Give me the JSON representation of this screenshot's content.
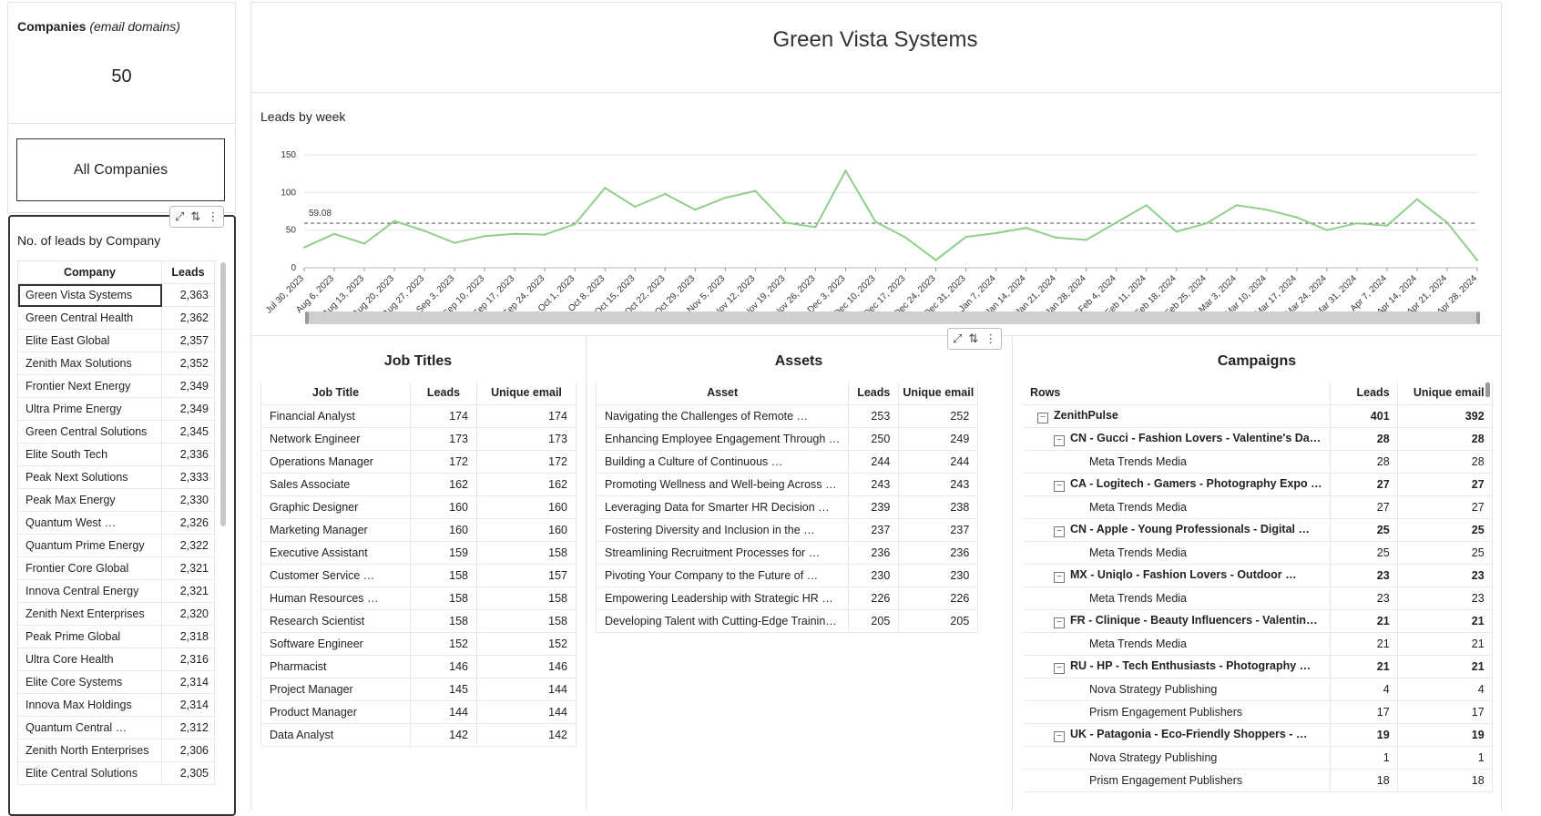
{
  "kpi": {
    "title_bold": "Companies",
    "title_italic": "(email domains)",
    "value": "50"
  },
  "filter_button": {
    "label": "All Companies"
  },
  "leads_by_company": {
    "title": "No. of leads by Company",
    "columns": [
      "Company",
      "Leads"
    ],
    "rows": [
      [
        "Green Vista Systems",
        "2,363"
      ],
      [
        "Green Central Health",
        "2,362"
      ],
      [
        "Elite East Global",
        "2,357"
      ],
      [
        "Zenith Max Solutions",
        "2,352"
      ],
      [
        "Frontier Next Energy",
        "2,349"
      ],
      [
        "Ultra Prime Energy",
        "2,349"
      ],
      [
        "Green Central Solutions",
        "2,345"
      ],
      [
        "Elite South Tech",
        "2,336"
      ],
      [
        "Peak Next Solutions",
        "2,333"
      ],
      [
        "Peak Max Energy",
        "2,330"
      ],
      [
        "Quantum West …",
        "2,326"
      ],
      [
        "Quantum Prime Energy",
        "2,322"
      ],
      [
        "Frontier Core Global",
        "2,321"
      ],
      [
        "Innova Central Energy",
        "2,321"
      ],
      [
        "Zenith Next Enterprises",
        "2,320"
      ],
      [
        "Peak Prime Global",
        "2,318"
      ],
      [
        "Ultra Core Health",
        "2,316"
      ],
      [
        "Elite Core Systems",
        "2,314"
      ],
      [
        "Innova Max Holdings",
        "2,314"
      ],
      [
        "Quantum Central …",
        "2,312"
      ],
      [
        "Zenith North Enterprises",
        "2,306"
      ],
      [
        "Elite Central Solutions",
        "2,305"
      ]
    ]
  },
  "page_title": "Green Vista Systems",
  "chart_data": {
    "type": "line",
    "title": "Leads by week",
    "xlabel": "",
    "ylabel": "",
    "ylim": [
      0,
      150
    ],
    "yticks": [
      "150",
      "100",
      "50",
      "0"
    ],
    "reference_line": {
      "value": 59.08,
      "label": "59.08"
    },
    "grid": true,
    "color": "#8fcf8a",
    "x": [
      "Jul 30, 2023",
      "Aug 6, 2023",
      "Aug 13, 2023",
      "Aug 20, 2023",
      "Aug 27, 2023",
      "Sep 3, 2023",
      "Sep 10, 2023",
      "Sep 17, 2023",
      "Sep 24, 2023",
      "Oct 1, 2023",
      "Oct 8, 2023",
      "Oct 15, 2023",
      "Oct 22, 2023",
      "Oct 29, 2023",
      "Nov 5, 2023",
      "Nov 12, 2023",
      "Nov 19, 2023",
      "Nov 26, 2023",
      "Dec 3, 2023",
      "Dec 10, 2023",
      "Dec 17, 2023",
      "Dec 24, 2023",
      "Dec 31, 2023",
      "Jan 7, 2024",
      "Jan 14, 2024",
      "Jan 21, 2024",
      "Jan 28, 2024",
      "Feb 4, 2024",
      "Feb 11, 2024",
      "Feb 18, 2024",
      "Feb 25, 2024",
      "Mar 3, 2024",
      "Mar 10, 2024",
      "Mar 17, 2024",
      "Mar 24, 2024",
      "Mar 31, 2024",
      "Apr 7, 2024",
      "Apr 14, 2024",
      "Apr 21, 2024",
      "Apr 28, 2024"
    ],
    "values": [
      27,
      45,
      32,
      62,
      49,
      33,
      42,
      45,
      44,
      58,
      106,
      81,
      98,
      77,
      93,
      102,
      60,
      54,
      129,
      61,
      40,
      10,
      41,
      46,
      53,
      40,
      37,
      60,
      83,
      48,
      59,
      83,
      77,
      67,
      50,
      59,
      56,
      91,
      60,
      10
    ]
  },
  "job_titles": {
    "title": "Job Titles",
    "columns": [
      "Job Title",
      "Leads",
      "Unique email"
    ],
    "rows": [
      [
        "Financial Analyst",
        "174",
        "174"
      ],
      [
        "Network Engineer",
        "173",
        "173"
      ],
      [
        "Operations Manager",
        "172",
        "172"
      ],
      [
        "Sales Associate",
        "162",
        "162"
      ],
      [
        "Graphic Designer",
        "160",
        "160"
      ],
      [
        "Marketing Manager",
        "160",
        "160"
      ],
      [
        "Executive Assistant",
        "159",
        "158"
      ],
      [
        "Customer Service …",
        "158",
        "157"
      ],
      [
        "Human Resources …",
        "158",
        "158"
      ],
      [
        "Research Scientist",
        "158",
        "158"
      ],
      [
        "Software Engineer",
        "152",
        "152"
      ],
      [
        "Pharmacist",
        "146",
        "146"
      ],
      [
        "Project Manager",
        "145",
        "144"
      ],
      [
        "Product Manager",
        "144",
        "144"
      ],
      [
        "Data Analyst",
        "142",
        "142"
      ]
    ]
  },
  "assets": {
    "title": "Assets",
    "columns": [
      "Asset",
      "Leads",
      "Unique email"
    ],
    "rows": [
      [
        "Navigating the Challenges of Remote …",
        "253",
        "252"
      ],
      [
        "Enhancing Employee Engagement Through …",
        "250",
        "249"
      ],
      [
        "Building a Culture of Continuous …",
        "244",
        "244"
      ],
      [
        "Promoting Wellness and Well-being Across …",
        "243",
        "243"
      ],
      [
        "Leveraging Data for Smarter HR Decision …",
        "239",
        "238"
      ],
      [
        "Fostering Diversity and Inclusion in the …",
        "237",
        "237"
      ],
      [
        "Streamlining Recruitment Processes for …",
        "236",
        "236"
      ],
      [
        "Pivoting Your Company to the Future of …",
        "230",
        "230"
      ],
      [
        "Empowering Leadership with Strategic HR …",
        "226",
        "226"
      ],
      [
        "Developing Talent with Cutting-Edge Trainin…",
        "205",
        "205"
      ]
    ]
  },
  "campaigns": {
    "title": "Campaigns",
    "columns": [
      "Rows",
      "Leads",
      "Unique email"
    ],
    "rows": [
      {
        "level": 1,
        "group": true,
        "label": "ZenithPulse",
        "leads": "401",
        "unique": "392"
      },
      {
        "level": 2,
        "group": true,
        "label": "CN - Gucci - Fashion Lovers - Valentine's Da…",
        "leads": "28",
        "unique": "28"
      },
      {
        "level": 3,
        "group": false,
        "label": "Meta Trends Media",
        "leads": "28",
        "unique": "28"
      },
      {
        "level": 2,
        "group": true,
        "label": "CA - Logitech - Gamers - Photography Expo …",
        "leads": "27",
        "unique": "27"
      },
      {
        "level": 3,
        "group": false,
        "label": "Meta Trends Media",
        "leads": "27",
        "unique": "27"
      },
      {
        "level": 2,
        "group": true,
        "label": "CN - Apple - Young Professionals - Digital …",
        "leads": "25",
        "unique": "25"
      },
      {
        "level": 3,
        "group": false,
        "label": "Meta Trends Media",
        "leads": "25",
        "unique": "25"
      },
      {
        "level": 2,
        "group": true,
        "label": "MX - Uniqlo - Fashion Lovers - Outdoor …",
        "leads": "23",
        "unique": "23"
      },
      {
        "level": 3,
        "group": false,
        "label": "Meta Trends Media",
        "leads": "23",
        "unique": "23"
      },
      {
        "level": 2,
        "group": true,
        "label": "FR - Clinique - Beauty Influencers - Valentin…",
        "leads": "21",
        "unique": "21"
      },
      {
        "level": 3,
        "group": false,
        "label": "Meta Trends Media",
        "leads": "21",
        "unique": "21"
      },
      {
        "level": 2,
        "group": true,
        "label": "RU - HP - Tech Enthusiasts - Photography …",
        "leads": "21",
        "unique": "21"
      },
      {
        "level": 3,
        "group": false,
        "label": "Nova Strategy Publishing",
        "leads": "4",
        "unique": "4"
      },
      {
        "level": 3,
        "group": false,
        "label": "Prism Engagement Publishers",
        "leads": "17",
        "unique": "17"
      },
      {
        "level": 2,
        "group": true,
        "label": "UK - Patagonia - Eco-Friendly Shoppers - …",
        "leads": "19",
        "unique": "19"
      },
      {
        "level": 3,
        "group": false,
        "label": "Nova Strategy Publishing",
        "leads": "1",
        "unique": "1"
      },
      {
        "level": 3,
        "group": false,
        "label": "Prism Engagement Publishers",
        "leads": "18",
        "unique": "18"
      }
    ]
  },
  "icons": {
    "expand": "expand-icon",
    "sort": "sort-icon",
    "more": "more-vertical-icon",
    "collapse": "collapse-square-icon"
  }
}
